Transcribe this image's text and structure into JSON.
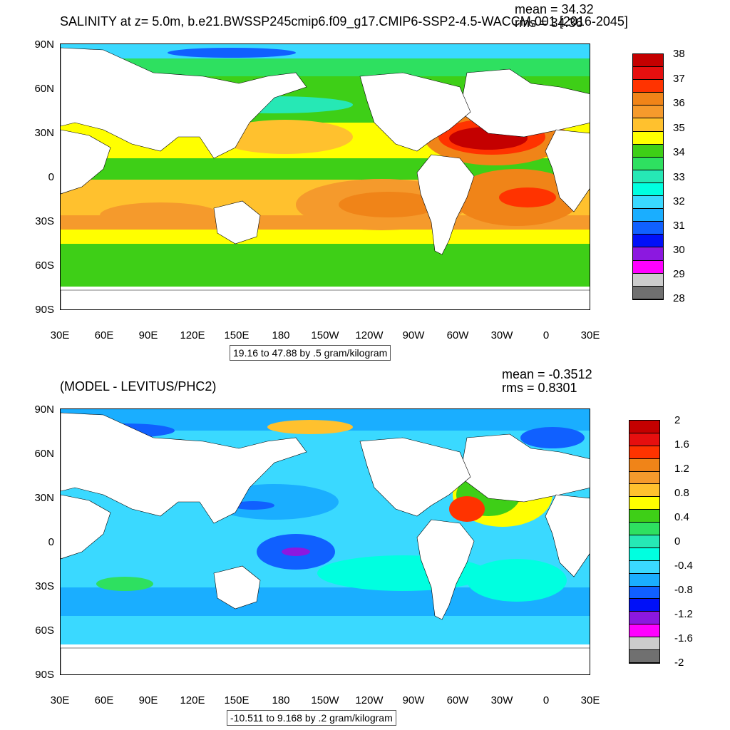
{
  "top": {
    "title": "SALINITY at z=   5.0m, b.e21.BWSSP245cmip6.f09_g17.CMIP6-SSP2-4.5-WACCM.001 [2016-2045]",
    "mean": "mean = 34.32",
    "rms": "rms = 34.36",
    "info": "19.16 to 47.88 by .5 gram/kilogram",
    "colorbar": {
      "labels": [
        "38",
        "37",
        "36",
        "35",
        "34",
        "33",
        "32",
        "31",
        "30",
        "29",
        "28"
      ],
      "colors": [
        "#c40000",
        "#e60f0f",
        "#ff3300",
        "#f08418",
        "#f59a2c",
        "#ffc12e",
        "#ffff00",
        "#3ecf17",
        "#2ee060",
        "#26e8b5",
        "#00ffe0",
        "#3ad9ff",
        "#1aaeff",
        "#1060ff",
        "#0010f8",
        "#8c18e0",
        "#ff00ff",
        "#cccccc",
        "#707070"
      ]
    }
  },
  "bottom": {
    "title": "(MODEL - LEVITUS/PHC2)",
    "mean": "mean = -0.3512",
    "rms": "rms = 0.8301",
    "info": "-10.511 to 9.168 by .2 gram/kilogram",
    "colorbar": {
      "labels": [
        "2",
        "1.6",
        "1.2",
        "0.8",
        "0.4",
        "0",
        "-0.4",
        "-0.8",
        "-1.2",
        "-1.6",
        "-2"
      ],
      "colors": [
        "#c40000",
        "#e60f0f",
        "#ff3300",
        "#f08418",
        "#f59a2c",
        "#ffc12e",
        "#ffff00",
        "#3ecf17",
        "#2ee060",
        "#26e8b5",
        "#00ffe0",
        "#3ad9ff",
        "#1aaeff",
        "#1060ff",
        "#0010f8",
        "#8c18e0",
        "#ff00ff",
        "#cccccc",
        "#707070"
      ]
    }
  },
  "axes": {
    "lat_labels": [
      "90N",
      "60N",
      "30N",
      "0",
      "30S",
      "60S",
      "90S"
    ],
    "lon_labels": [
      "30E",
      "60E",
      "90E",
      "120E",
      "150E",
      "180",
      "150W",
      "120W",
      "90W",
      "60W",
      "30W",
      "0",
      "30E"
    ]
  }
}
